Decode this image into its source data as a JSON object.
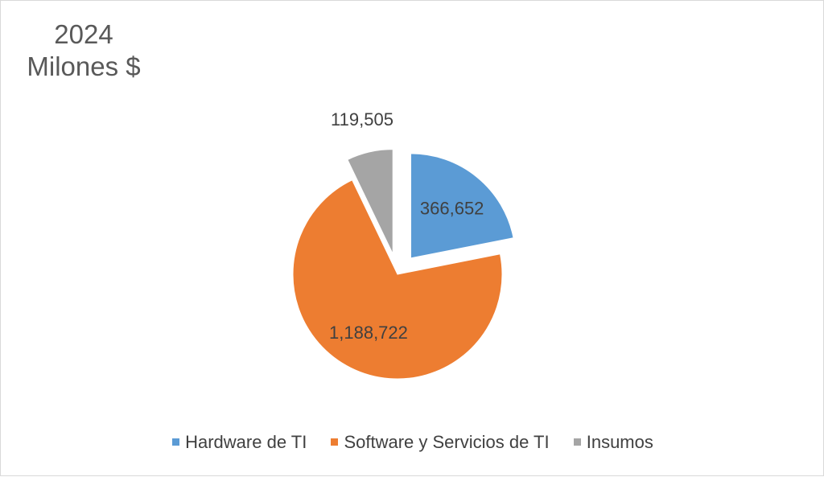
{
  "chart_data": {
    "type": "pie",
    "title_lines": [
      "2024",
      "Milones $"
    ],
    "categories": [
      "Hardware de TI",
      "Software y Servicios de TI",
      "Insumos"
    ],
    "values": [
      366652,
      1188722,
      119505
    ],
    "data_labels": [
      "366,652",
      "1,188,722",
      "119,505"
    ],
    "colors": [
      "#5b9bd5",
      "#ed7d31",
      "#a5a5a5"
    ],
    "exploded": [
      true,
      false,
      true
    ],
    "legend_position": "bottom",
    "label_color": "#404040"
  }
}
